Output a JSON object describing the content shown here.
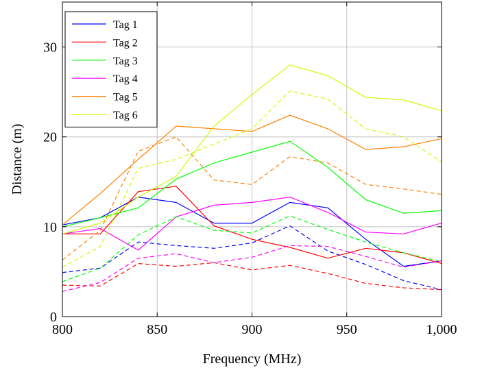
{
  "chart_data": {
    "type": "line",
    "title": "",
    "xlabel": "Frequency (MHz)",
    "ylabel": "Distance (m)",
    "xlim": [
      800,
      1000
    ],
    "ylim": [
      0,
      35
    ],
    "x_ticks": [
      800,
      850,
      900,
      950,
      1000
    ],
    "x_tick_labels": [
      "800",
      "850",
      "900",
      "950",
      "1,000"
    ],
    "y_ticks": [
      0,
      10,
      20,
      30
    ],
    "y_tick_labels": [
      "0",
      "10",
      "20",
      "30"
    ],
    "grid": true,
    "legend_position": "top-left",
    "x": [
      800,
      820,
      840,
      860,
      880,
      900,
      920,
      940,
      960,
      980,
      1000
    ],
    "series": [
      {
        "name": "Tag 1",
        "color": "#0000ff",
        "style": "solid",
        "values": [
          10.2,
          11.0,
          13.3,
          12.7,
          10.4,
          10.4,
          12.7,
          12.1,
          8.6,
          5.6,
          6.2
        ]
      },
      {
        "name": "Tag 2",
        "color": "#ff0000",
        "style": "solid",
        "values": [
          9.2,
          9.2,
          13.9,
          14.5,
          10.1,
          8.6,
          7.7,
          6.5,
          7.6,
          7.1,
          5.9
        ]
      },
      {
        "name": "Tag 3",
        "color": "#00ff00",
        "style": "solid",
        "values": [
          10.0,
          11.0,
          12.1,
          15.3,
          17.1,
          18.3,
          19.5,
          16.6,
          13.0,
          11.5,
          11.8
        ]
      },
      {
        "name": "Tag 4",
        "color": "#ff00ff",
        "style": "solid",
        "values": [
          9.2,
          9.8,
          7.4,
          11.1,
          12.4,
          12.7,
          13.3,
          11.6,
          9.4,
          9.2,
          10.4
        ]
      },
      {
        "name": "Tag 5",
        "color": "#ff8000",
        "style": "solid",
        "values": [
          10.2,
          13.7,
          17.5,
          21.2,
          20.9,
          20.6,
          22.4,
          20.9,
          18.6,
          18.9,
          19.8
        ]
      },
      {
        "name": "Tag 6",
        "color": "#c8ff00",
        "style": "solid",
        "values": [
          9.2,
          10.4,
          13.3,
          15.6,
          21.2,
          24.7,
          28.0,
          26.8,
          24.4,
          24.1,
          22.9
        ]
      },
      {
        "name": "",
        "color": "#0000ff",
        "style": "dashed",
        "values": [
          4.9,
          5.4,
          8.3,
          7.9,
          7.6,
          8.2,
          10.1,
          7.3,
          5.8,
          4.0,
          3.0
        ]
      },
      {
        "name": "",
        "color": "#ff0000",
        "style": "dashed",
        "values": [
          3.5,
          3.4,
          5.9,
          5.6,
          6.0,
          5.2,
          5.7,
          4.8,
          3.7,
          3.2,
          3.0
        ]
      },
      {
        "name": "",
        "color": "#00ff00",
        "style": "dashed",
        "values": [
          3.9,
          5.4,
          9.1,
          11.1,
          9.6,
          9.3,
          11.2,
          9.7,
          8.3,
          7.1,
          6.1
        ]
      },
      {
        "name": "",
        "color": "#ff00ff",
        "style": "dashed",
        "values": [
          2.8,
          3.8,
          6.5,
          7.0,
          6.0,
          6.6,
          7.9,
          7.8,
          6.7,
          5.5,
          6.2
        ]
      },
      {
        "name": "",
        "color": "#ff8000",
        "style": "dashed",
        "values": [
          6.3,
          9.6,
          18.4,
          20.0,
          15.2,
          14.7,
          17.8,
          17.1,
          14.7,
          14.2,
          13.6
        ]
      },
      {
        "name": "",
        "color": "#c8ff00",
        "style": "dashed",
        "values": [
          5.5,
          7.8,
          16.5,
          17.5,
          19.2,
          20.9,
          25.1,
          24.2,
          20.9,
          20.0,
          17.2
        ]
      }
    ]
  }
}
